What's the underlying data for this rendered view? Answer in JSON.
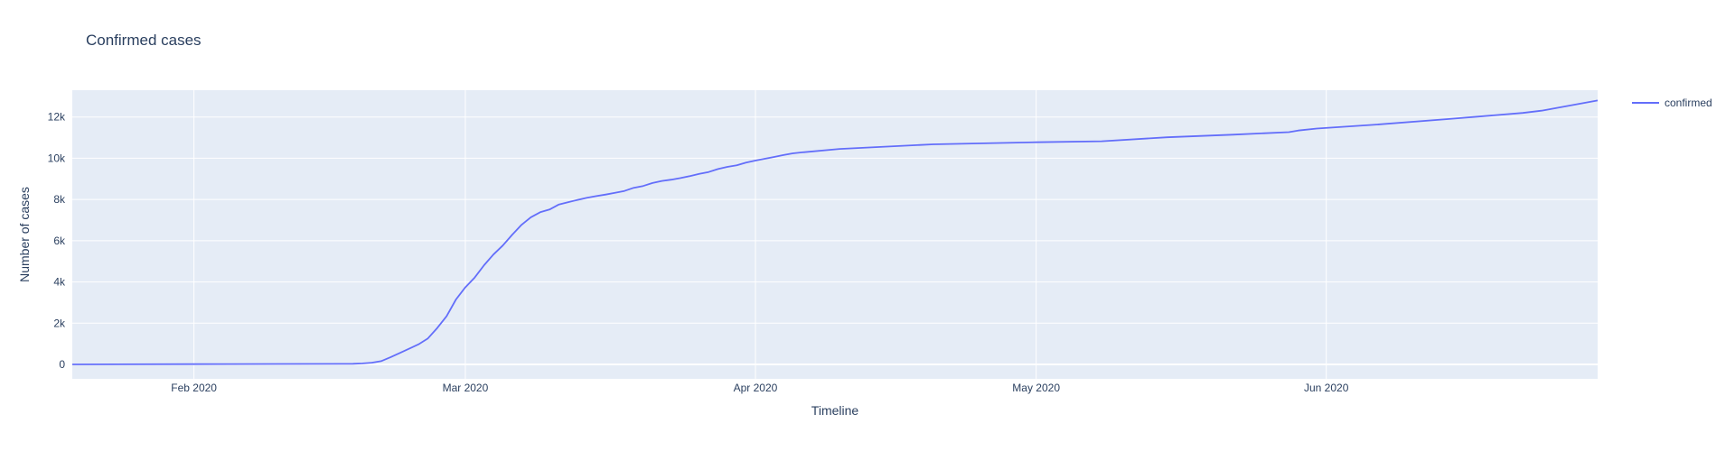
{
  "chart_data": {
    "type": "line",
    "title": "Confirmed cases",
    "xlabel": "Timeline",
    "ylabel": "Number of cases",
    "x_range": [
      "2020-01-19",
      "2020-06-30"
    ],
    "ylim": [
      -700,
      13300
    ],
    "x_ticks": [
      {
        "date": "2020-02-01",
        "label": "Feb 2020"
      },
      {
        "date": "2020-03-01",
        "label": "Mar 2020"
      },
      {
        "date": "2020-04-01",
        "label": "Apr 2020"
      },
      {
        "date": "2020-05-01",
        "label": "May 2020"
      },
      {
        "date": "2020-06-01",
        "label": "Jun 2020"
      }
    ],
    "y_ticks": [
      {
        "value": 0,
        "label": "0"
      },
      {
        "value": 2000,
        "label": "2k"
      },
      {
        "value": 4000,
        "label": "4k"
      },
      {
        "value": 6000,
        "label": "6k"
      },
      {
        "value": 8000,
        "label": "8k"
      },
      {
        "value": 10000,
        "label": "10k"
      },
      {
        "value": 12000,
        "label": "12k"
      }
    ],
    "grid": true,
    "legend_position": "top-right",
    "colors": {
      "plot_bg": "#e5ecf6",
      "grid": "#ffffff",
      "line": "#636efa"
    },
    "series": [
      {
        "name": "confirmed",
        "points": [
          [
            "2020-01-19",
            0
          ],
          [
            "2020-02-01",
            11
          ],
          [
            "2020-02-10",
            24
          ],
          [
            "2020-02-17",
            28
          ],
          [
            "2020-02-18",
            30
          ],
          [
            "2020-02-19",
            46
          ],
          [
            "2020-02-20",
            82
          ],
          [
            "2020-02-21",
            156
          ],
          [
            "2020-02-22",
            346
          ],
          [
            "2020-02-23",
            556
          ],
          [
            "2020-02-24",
            763
          ],
          [
            "2020-02-25",
            977
          ],
          [
            "2020-02-26",
            1261
          ],
          [
            "2020-02-27",
            1766
          ],
          [
            "2020-02-28",
            2337
          ],
          [
            "2020-02-29",
            3150
          ],
          [
            "2020-03-01",
            3736
          ],
          [
            "2020-03-02",
            4212
          ],
          [
            "2020-03-03",
            4812
          ],
          [
            "2020-03-04",
            5328
          ],
          [
            "2020-03-05",
            5766
          ],
          [
            "2020-03-06",
            6284
          ],
          [
            "2020-03-07",
            6767
          ],
          [
            "2020-03-08",
            7134
          ],
          [
            "2020-03-09",
            7382
          ],
          [
            "2020-03-10",
            7513
          ],
          [
            "2020-03-11",
            7755
          ],
          [
            "2020-03-12",
            7869
          ],
          [
            "2020-03-13",
            7979
          ],
          [
            "2020-03-14",
            8086
          ],
          [
            "2020-03-15",
            8162
          ],
          [
            "2020-03-16",
            8236
          ],
          [
            "2020-03-17",
            8320
          ],
          [
            "2020-03-18",
            8413
          ],
          [
            "2020-03-19",
            8565
          ],
          [
            "2020-03-20",
            8652
          ],
          [
            "2020-03-21",
            8799
          ],
          [
            "2020-03-22",
            8897
          ],
          [
            "2020-03-23",
            8961
          ],
          [
            "2020-03-24",
            9037
          ],
          [
            "2020-03-25",
            9137
          ],
          [
            "2020-03-26",
            9241
          ],
          [
            "2020-03-27",
            9332
          ],
          [
            "2020-03-28",
            9478
          ],
          [
            "2020-03-29",
            9583
          ],
          [
            "2020-03-30",
            9661
          ],
          [
            "2020-03-31",
            9786
          ],
          [
            "2020-04-01",
            9887
          ],
          [
            "2020-04-02",
            9976
          ],
          [
            "2020-04-03",
            10062
          ],
          [
            "2020-04-04",
            10156
          ],
          [
            "2020-04-05",
            10237
          ],
          [
            "2020-04-06",
            10284
          ],
          [
            "2020-04-10",
            10450
          ],
          [
            "2020-04-20",
            10674
          ],
          [
            "2020-05-01",
            10774
          ],
          [
            "2020-05-08",
            10822
          ],
          [
            "2020-05-15",
            11018
          ],
          [
            "2020-05-22",
            11142
          ],
          [
            "2020-05-28",
            11265
          ],
          [
            "2020-05-29",
            11344
          ],
          [
            "2020-05-31",
            11441
          ],
          [
            "2020-06-06",
            11621
          ],
          [
            "2020-06-14",
            11902
          ],
          [
            "2020-06-22",
            12198
          ],
          [
            "2020-06-24",
            12306
          ],
          [
            "2020-06-30",
            12800
          ]
        ]
      }
    ]
  }
}
